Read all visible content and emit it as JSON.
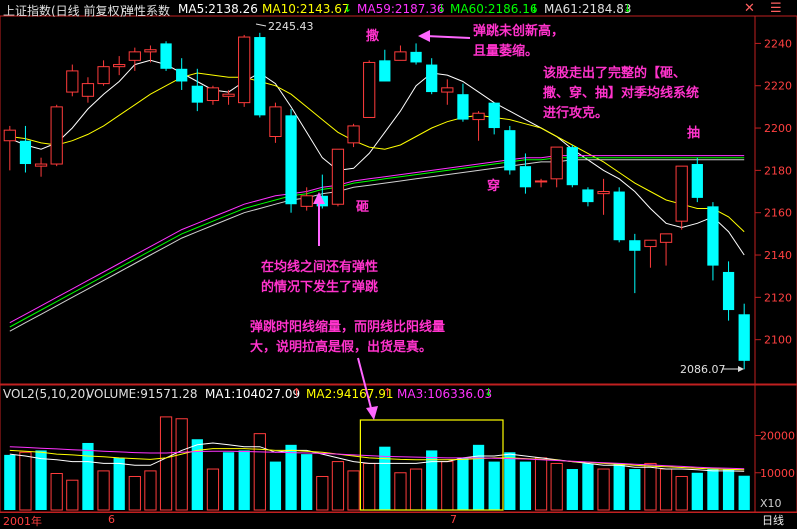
{
  "header_top": {
    "index_name": "上证指数(日线 前复权)",
    "elasticity": "弹性系数",
    "ma5": "MA5:2138.26",
    "ma10": "MA10:2143.67",
    "ma59": "MA59:2187.36",
    "ma60": "MA60:2186.16",
    "ma61": "MA61:2184.83"
  },
  "header_vol": {
    "vol": "VOL2(5,10,20)",
    "volume": "VOLUME:91571.28",
    "ma1": "MA1:104027.09",
    "ma2": "MA2:94167.91",
    "ma3": "MA3:106336.03"
  },
  "annotations": {
    "high_label": "2245.43",
    "low_label": "2086.07",
    "mark_zhi": "砸",
    "mark_sa": "撒",
    "mark_chuan": "穿",
    "mark_chou": "抽",
    "note_rebound": [
      "在均线之间还有弹性",
      "的情况下发生了弹跳"
    ],
    "note_new_high": [
      "弹跳未创新高，",
      "且量萎缩。"
    ],
    "note_complete": [
      "该股走出了完整的【砸、",
      "撒、穿、抽】对季均线系统",
      "进行攻克。"
    ],
    "note_volume": [
      "弹跳时阳线缩量，而阴线比阳线量",
      "大，说明拉高是假，出货是真。"
    ]
  },
  "bottom": {
    "year": "2001年",
    "month6": "6",
    "month7": "7",
    "period": "日线",
    "vol_unit": "X10"
  },
  "chart_data": [
    {
      "type": "candlestick",
      "title": "上证指数(日线 前复权)",
      "y_ticks": [
        2240,
        2220,
        2200,
        2180,
        2160,
        2140,
        2120,
        2100
      ],
      "ylim": [
        2080,
        2252
      ],
      "candles": [
        {
          "o": 2194,
          "h": 2201,
          "l": 2180,
          "c": 2199
        },
        {
          "o": 2194,
          "h": 2201,
          "l": 2179,
          "c": 2183
        },
        {
          "o": 2182,
          "h": 2186,
          "l": 2177,
          "c": 2183
        },
        {
          "o": 2183,
          "h": 2211,
          "l": 2182,
          "c": 2210
        },
        {
          "o": 2217,
          "h": 2230,
          "l": 2215,
          "c": 2227
        },
        {
          "o": 2215,
          "h": 2224,
          "l": 2212,
          "c": 2221
        },
        {
          "o": 2221,
          "h": 2232,
          "l": 2220,
          "c": 2229
        },
        {
          "o": 2229,
          "h": 2234,
          "l": 2225,
          "c": 2230
        },
        {
          "o": 2232,
          "h": 2238,
          "l": 2227,
          "c": 2236
        },
        {
          "o": 2236,
          "h": 2239,
          "l": 2231,
          "c": 2237
        },
        {
          "o": 2240,
          "h": 2241,
          "l": 2227,
          "c": 2228
        },
        {
          "o": 2228,
          "h": 2233,
          "l": 2218,
          "c": 2222
        },
        {
          "o": 2220,
          "h": 2228,
          "l": 2208,
          "c": 2212
        },
        {
          "o": 2213,
          "h": 2220,
          "l": 2211,
          "c": 2219
        },
        {
          "o": 2215,
          "h": 2218,
          "l": 2211,
          "c": 2216
        },
        {
          "o": 2212,
          "h": 2244,
          "l": 2210,
          "c": 2243
        },
        {
          "o": 2243,
          "h": 2245,
          "l": 2205,
          "c": 2206
        },
        {
          "o": 2196,
          "h": 2212,
          "l": 2193,
          "c": 2210
        },
        {
          "o": 2206,
          "h": 2209,
          "l": 2160,
          "c": 2164
        },
        {
          "o": 2163,
          "h": 2172,
          "l": 2161,
          "c": 2168
        },
        {
          "o": 2168,
          "h": 2178,
          "l": 2162,
          "c": 2163
        },
        {
          "o": 2164,
          "h": 2190,
          "l": 2163,
          "c": 2190
        },
        {
          "o": 2193,
          "h": 2202,
          "l": 2191,
          "c": 2201
        },
        {
          "o": 2205,
          "h": 2232,
          "l": 2205,
          "c": 2231
        },
        {
          "o": 2232,
          "h": 2237,
          "l": 2222,
          "c": 2222
        },
        {
          "o": 2232,
          "h": 2239,
          "l": 2232,
          "c": 2236
        },
        {
          "o": 2236,
          "h": 2240,
          "l": 2230,
          "c": 2231
        },
        {
          "o": 2230,
          "h": 2233,
          "l": 2216,
          "c": 2217
        },
        {
          "o": 2217,
          "h": 2223,
          "l": 2211,
          "c": 2219
        },
        {
          "o": 2216,
          "h": 2221,
          "l": 2203,
          "c": 2204
        },
        {
          "o": 2204,
          "h": 2208,
          "l": 2194,
          "c": 2207
        },
        {
          "o": 2212,
          "h": 2212,
          "l": 2197,
          "c": 2200
        },
        {
          "o": 2199,
          "h": 2201,
          "l": 2178,
          "c": 2180
        },
        {
          "o": 2182,
          "h": 2188,
          "l": 2169,
          "c": 2172
        },
        {
          "o": 2175,
          "h": 2176,
          "l": 2172,
          "c": 2175
        },
        {
          "o": 2176,
          "h": 2191,
          "l": 2172,
          "c": 2191
        },
        {
          "o": 2191,
          "h": 2192,
          "l": 2172,
          "c": 2173
        },
        {
          "o": 2171,
          "h": 2172,
          "l": 2163,
          "c": 2165
        },
        {
          "o": 2169,
          "h": 2176,
          "l": 2159,
          "c": 2170
        },
        {
          "o": 2170,
          "h": 2172,
          "l": 2146,
          "c": 2147
        },
        {
          "o": 2147,
          "h": 2150,
          "l": 2122,
          "c": 2142
        },
        {
          "o": 2144,
          "h": 2147,
          "l": 2134,
          "c": 2147
        },
        {
          "o": 2146,
          "h": 2150,
          "l": 2135,
          "c": 2150
        },
        {
          "o": 2156,
          "h": 2182,
          "l": 2152,
          "c": 2182
        },
        {
          "o": 2183,
          "h": 2186,
          "l": 2165,
          "c": 2167
        },
        {
          "o": 2163,
          "h": 2165,
          "l": 2128,
          "c": 2135
        },
        {
          "o": 2132,
          "h": 2137,
          "l": 2109,
          "c": 2114
        },
        {
          "o": 2112,
          "h": 2117,
          "l": 2086,
          "c": 2090
        }
      ],
      "series": [
        {
          "name": "MA5",
          "color": "#ffffff",
          "values": [
            2195,
            2192,
            2190,
            2193,
            2200,
            2209,
            2216,
            2222,
            2230,
            2232,
            2230,
            2226,
            2222,
            2218,
            2217,
            2222,
            2226,
            2221,
            2210,
            2198,
            2186,
            2180,
            2181,
            2188,
            2198,
            2208,
            2220,
            2226,
            2225,
            2222,
            2217,
            2212,
            2208,
            2204,
            2200,
            2196,
            2190,
            2185,
            2180,
            2176,
            2170,
            2162,
            2155,
            2153,
            2155,
            2158,
            2151,
            2140
          ]
        },
        {
          "name": "MA10",
          "color": "#ffff00",
          "values": [
            2196,
            2195,
            2193,
            2192,
            2194,
            2197,
            2201,
            2206,
            2211,
            2216,
            2220,
            2224,
            2226,
            2225,
            2224,
            2224,
            2222,
            2220,
            2216,
            2210,
            2204,
            2198,
            2194,
            2191,
            2190,
            2192,
            2196,
            2200,
            2203,
            2205,
            2206,
            2205,
            2204,
            2202,
            2200,
            2196,
            2192,
            2188,
            2184,
            2179,
            2174,
            2170,
            2166,
            2164,
            2162,
            2162,
            2158,
            2151
          ]
        },
        {
          "name": "MA59",
          "color": "#ff33ff",
          "values": [
            2108,
            2112,
            2116,
            2120,
            2124,
            2128,
            2132,
            2136,
            2140,
            2144,
            2148,
            2152,
            2155,
            2158,
            2161,
            2164,
            2166,
            2168,
            2169,
            2170,
            2172,
            2173,
            2175,
            2176,
            2177,
            2178,
            2179,
            2180,
            2181,
            2182,
            2183,
            2184,
            2185,
            2186,
            2186,
            2187,
            2187,
            2187,
            2187,
            2187,
            2187,
            2187,
            2187,
            2187,
            2187,
            2187,
            2187,
            2187
          ]
        },
        {
          "name": "MA60",
          "color": "#00ff00",
          "values": [
            2106,
            2110,
            2114,
            2118,
            2122,
            2126,
            2130,
            2134,
            2138,
            2142,
            2146,
            2150,
            2153,
            2156,
            2159,
            2162,
            2164,
            2166,
            2168,
            2169,
            2171,
            2172,
            2174,
            2175,
            2176,
            2177,
            2178,
            2179,
            2180,
            2181,
            2182,
            2183,
            2184,
            2185,
            2185,
            2186,
            2186,
            2186,
            2186,
            2186,
            2186,
            2186,
            2186,
            2186,
            2186,
            2186,
            2186,
            2186
          ]
        },
        {
          "name": "MA61",
          "color": "#d0d0d0",
          "values": [
            2104,
            2108,
            2112,
            2116,
            2120,
            2124,
            2128,
            2132,
            2136,
            2140,
            2144,
            2148,
            2151,
            2154,
            2157,
            2160,
            2162,
            2164,
            2166,
            2167,
            2169,
            2170,
            2172,
            2173,
            2174,
            2175,
            2176,
            2177,
            2178,
            2179,
            2180,
            2181,
            2182,
            2183,
            2184,
            2184,
            2185,
            2185,
            2185,
            2185,
            2185,
            2185,
            2185,
            2185,
            2185,
            2185,
            2185,
            2185
          ]
        }
      ]
    },
    {
      "type": "bar",
      "title": "VOL2(5,10,20)",
      "y_ticks": [
        20000,
        10000
      ],
      "ylim": [
        0,
        29000
      ],
      "values": [
        14800,
        15500,
        16000,
        9800,
        8000,
        18000,
        10500,
        14000,
        9000,
        10500,
        25000,
        24500,
        19000,
        11000,
        15500,
        16000,
        20500,
        13000,
        17500,
        15000,
        9000,
        13000,
        10500,
        12500,
        17000,
        10000,
        11000,
        16000,
        13000,
        14000,
        17500,
        13000,
        15500,
        13000,
        14000,
        12500,
        11000,
        12500,
        11000,
        12500,
        11000,
        12500,
        11000,
        9000,
        10000,
        11000,
        11000,
        9200
      ],
      "bar_colors_down": [
        true,
        false,
        true,
        false,
        false,
        true,
        false,
        true,
        false,
        false,
        false,
        false,
        true,
        false,
        true,
        true,
        false,
        true,
        true,
        true,
        false,
        false,
        false,
        false,
        true,
        false,
        false,
        true,
        false,
        true,
        true,
        true,
        true,
        true,
        false,
        false,
        true,
        true,
        false,
        true,
        true,
        false,
        false,
        false,
        true,
        true,
        true,
        true
      ],
      "series": [
        {
          "name": "MA1",
          "color": "#ffffff",
          "values": [
            15000,
            14500,
            13800,
            13500,
            13000,
            13000,
            12500,
            12500,
            12000,
            12000,
            14000,
            16000,
            17500,
            18000,
            17500,
            17000,
            17000,
            15500,
            16000,
            16000,
            15000,
            14000,
            13000,
            12500,
            12500,
            12500,
            12500,
            13000,
            13000,
            14000,
            14500,
            14500,
            15000,
            14500,
            14000,
            13500,
            13000,
            12500,
            12000,
            12000,
            11500,
            11500,
            11000,
            11000,
            10800,
            10500,
            10500,
            10400
          ]
        },
        {
          "name": "MA2",
          "color": "#ffff00",
          "values": [
            16000,
            15800,
            15500,
            15000,
            14800,
            14500,
            14300,
            14000,
            13800,
            13600,
            14000,
            15000,
            16000,
            16500,
            16500,
            16500,
            16300,
            16000,
            16000,
            15800,
            15500,
            15000,
            14500,
            14000,
            13800,
            13600,
            13500,
            13500,
            13500,
            13600,
            13800,
            14000,
            14000,
            13800,
            13600,
            13400,
            13000,
            12800,
            12500,
            12300,
            12000,
            11800,
            11600,
            11400,
            11200,
            11000,
            10900,
            10800
          ]
        },
        {
          "name": "MA3",
          "color": "#ff33ff",
          "values": [
            17000,
            16800,
            16600,
            16400,
            16200,
            16000,
            15800,
            15600,
            15400,
            15300,
            15300,
            15500,
            15700,
            15800,
            15800,
            15700,
            15600,
            15500,
            15400,
            15300,
            15200,
            15000,
            14800,
            14600,
            14400,
            14300,
            14200,
            14100,
            14000,
            14000,
            14000,
            13900,
            13800,
            13700,
            13500,
            13300,
            13100,
            12900,
            12700,
            12500,
            12300,
            12100,
            11900,
            11700,
            11500,
            11300,
            11200,
            11100
          ]
        }
      ]
    }
  ]
}
